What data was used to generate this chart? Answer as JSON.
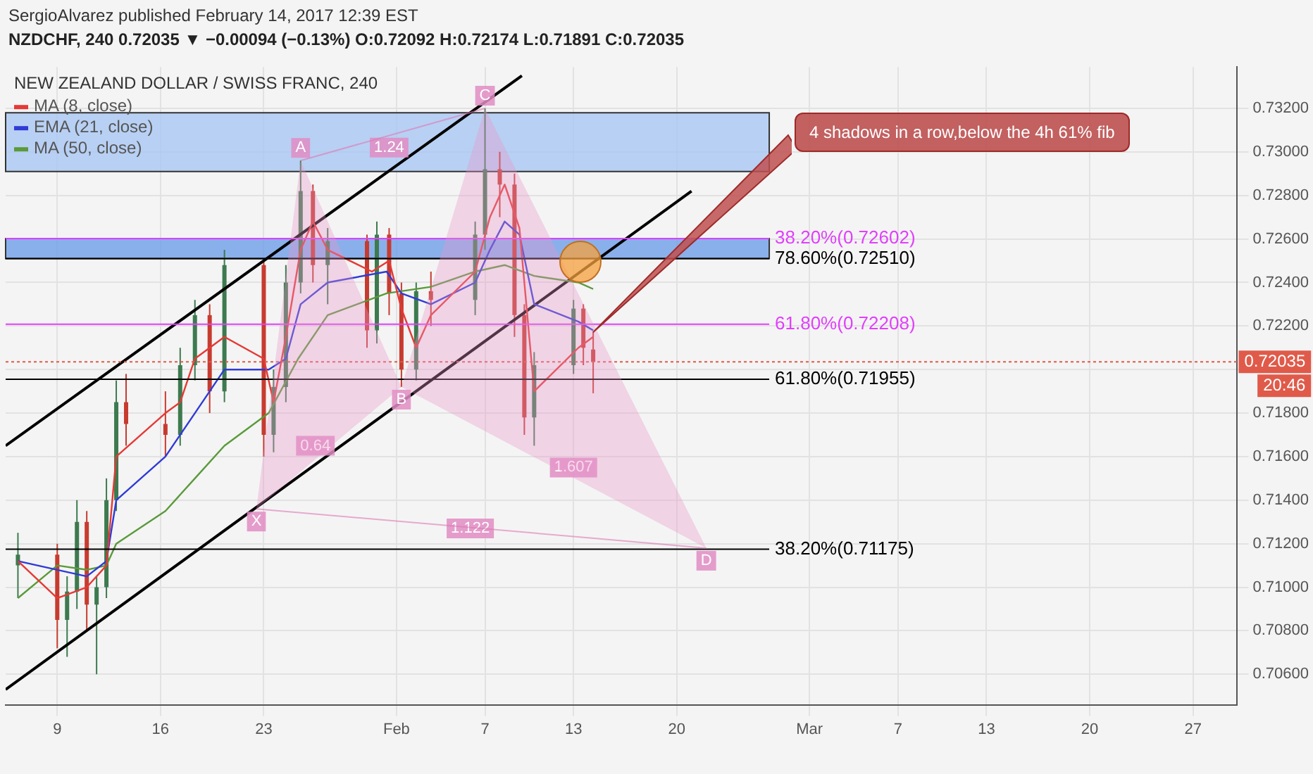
{
  "chart_data": {
    "type": "candlestick",
    "title": "NEW ZEALAND DOLLAR / SWISS FRANC, 240",
    "subtitle": "NZDCHF, 240  0.72035 ▼ −0.00094 (−0.13%) O:0.72092 H:0.72174 L:0.71891 C:0.72035",
    "x": [
      "2017-01-06T08:00",
      "2017-01-09T00:00",
      "2017-01-09T16:00",
      "2017-01-10T08:00",
      "2017-01-11T00:00",
      "2017-01-11T16:00",
      "2017-01-12T08:00",
      "2017-01-13T00:00",
      "2017-01-13T16:00",
      "2017-01-16T08:00",
      "2017-01-17T08:00",
      "2017-01-18T08:00",
      "2017-01-19T08:00",
      "2017-01-20T08:00",
      "2017-01-23T00:00",
      "2017-01-23T16:00",
      "2017-01-24T12:00",
      "2017-01-25T12:00",
      "2017-01-26T08:00",
      "2017-01-27T08:00",
      "2017-01-30T00:00",
      "2017-01-30T16:00",
      "2017-01-31T12:00",
      "2017-02-01T08:00",
      "2017-02-02T08:00",
      "2017-02-03T08:00",
      "2017-02-06T08:00",
      "2017-02-07T00:00",
      "2017-02-08T00:00",
      "2017-02-09T00:00",
      "2017-02-09T16:00",
      "2017-02-10T08:00",
      "2017-02-13T00:00",
      "2017-02-13T16:00",
      "2017-02-14T08:00"
    ],
    "ohlc": [
      [
        0.711,
        0.7125,
        0.7095,
        0.7115
      ],
      [
        0.7115,
        0.712,
        0.7072,
        0.7085
      ],
      [
        0.7085,
        0.7105,
        0.7068,
        0.7098
      ],
      [
        0.7098,
        0.714,
        0.709,
        0.713
      ],
      [
        0.713,
        0.7135,
        0.708,
        0.7092
      ],
      [
        0.7092,
        0.7105,
        0.706,
        0.71
      ],
      [
        0.71,
        0.715,
        0.7095,
        0.714
      ],
      [
        0.714,
        0.7195,
        0.7135,
        0.7185
      ],
      [
        0.7185,
        0.7198,
        0.7165,
        0.7175
      ],
      [
        0.7175,
        0.719,
        0.716,
        0.717
      ],
      [
        0.717,
        0.721,
        0.7165,
        0.7202
      ],
      [
        0.7202,
        0.7232,
        0.7195,
        0.7225
      ],
      [
        0.7225,
        0.723,
        0.718,
        0.719
      ],
      [
        0.719,
        0.7255,
        0.7185,
        0.7248
      ],
      [
        0.7248,
        0.725,
        0.716,
        0.717
      ],
      [
        0.717,
        0.72,
        0.7162,
        0.7192
      ],
      [
        0.7192,
        0.7248,
        0.7185,
        0.724
      ],
      [
        0.724,
        0.7296,
        0.7235,
        0.7282
      ],
      [
        0.7282,
        0.7285,
        0.724,
        0.7248
      ],
      [
        0.7248,
        0.7265,
        0.723,
        0.7259
      ],
      [
        0.7259,
        0.7262,
        0.721,
        0.7218
      ],
      [
        0.7218,
        0.7268,
        0.7212,
        0.7262
      ],
      [
        0.7262,
        0.7265,
        0.7225,
        0.7235
      ],
      [
        0.7235,
        0.724,
        0.7192,
        0.72
      ],
      [
        0.72,
        0.724,
        0.7195,
        0.7236
      ],
      [
        0.7236,
        0.7245,
        0.722,
        0.7232
      ],
      [
        0.7232,
        0.7268,
        0.7225,
        0.7262
      ],
      [
        0.7262,
        0.732,
        0.7255,
        0.7292
      ],
      [
        0.7292,
        0.73,
        0.727,
        0.7285
      ],
      [
        0.7285,
        0.729,
        0.7215,
        0.7225
      ],
      [
        0.7225,
        0.723,
        0.717,
        0.7178
      ],
      [
        0.7178,
        0.7208,
        0.7165,
        0.7202
      ],
      [
        0.7202,
        0.7232,
        0.7198,
        0.7228
      ],
      [
        0.7228,
        0.723,
        0.7202,
        0.721
      ],
      [
        0.72092,
        0.72174,
        0.71891,
        0.72035
      ]
    ],
    "series": [
      {
        "type": "line",
        "name": "MA (8, close)",
        "color": "#e53935",
        "x": [
          "2017-01-06T08:00",
          "2017-01-09T00:00",
          "2017-01-11T00:00",
          "2017-01-12T08:00",
          "2017-01-13T00:00",
          "2017-01-16T08:00",
          "2017-01-17T08:00",
          "2017-01-18T08:00",
          "2017-01-19T08:00",
          "2017-01-20T08:00",
          "2017-01-23T00:00",
          "2017-01-23T16:00",
          "2017-01-24T12:00",
          "2017-01-25T12:00",
          "2017-01-26T08:00",
          "2017-01-27T08:00",
          "2017-01-30T08:00",
          "2017-01-31T12:00",
          "2017-02-01T08:00",
          "2017-02-02T08:00",
          "2017-02-03T08:00",
          "2017-02-06T08:00",
          "2017-02-07T08:00",
          "2017-02-08T08:00",
          "2017-02-09T08:00",
          "2017-02-10T08:00",
          "2017-02-13T08:00",
          "2017-02-14T08:00"
        ],
        "values": [
          0.7112,
          0.7095,
          0.71,
          0.711,
          0.716,
          0.718,
          0.7185,
          0.7205,
          0.721,
          0.7215,
          0.7205,
          0.7185,
          0.7215,
          0.7255,
          0.7268,
          0.7255,
          0.7245,
          0.725,
          0.7228,
          0.721,
          0.7225,
          0.7245,
          0.727,
          0.7285,
          0.7265,
          0.719,
          0.721,
          0.7215
        ]
      },
      {
        "type": "line",
        "name": "EMA (21, close)",
        "color": "#2f3bd6",
        "x": [
          "2017-01-06T08:00",
          "2017-01-09T00:00",
          "2017-01-11T00:00",
          "2017-01-12T08:00",
          "2017-01-13T00:00",
          "2017-01-16T08:00",
          "2017-01-18T08:00",
          "2017-01-20T08:00",
          "2017-01-23T08:00",
          "2017-01-24T12:00",
          "2017-01-25T12:00",
          "2017-01-27T08:00",
          "2017-01-31T08:00",
          "2017-02-01T08:00",
          "2017-02-03T08:00",
          "2017-02-06T08:00",
          "2017-02-07T08:00",
          "2017-02-08T08:00",
          "2017-02-09T08:00",
          "2017-02-10T08:00",
          "2017-02-13T08:00",
          "2017-02-14T08:00"
        ],
        "values": [
          0.7112,
          0.7108,
          0.7105,
          0.7112,
          0.714,
          0.716,
          0.718,
          0.72,
          0.72,
          0.7205,
          0.723,
          0.724,
          0.7245,
          0.7235,
          0.723,
          0.724,
          0.7255,
          0.7268,
          0.7262,
          0.723,
          0.7222,
          0.7218
        ]
      },
      {
        "type": "line",
        "name": "MA (50, close)",
        "color": "#5a9a3a",
        "x": [
          "2017-01-06T08:00",
          "2017-01-09T00:00",
          "2017-01-11T00:00",
          "2017-01-12T08:00",
          "2017-01-13T00:00",
          "2017-01-16T08:00",
          "2017-01-18T08:00",
          "2017-01-20T08:00",
          "2017-01-23T08:00",
          "2017-01-25T08:00",
          "2017-01-27T08:00",
          "2017-01-31T08:00",
          "2017-02-03T08:00",
          "2017-02-06T08:00",
          "2017-02-08T08:00",
          "2017-02-10T08:00",
          "2017-02-13T08:00",
          "2017-02-14T08:00"
        ],
        "values": [
          0.7095,
          0.711,
          0.7108,
          0.711,
          0.712,
          0.7135,
          0.715,
          0.7165,
          0.718,
          0.7205,
          0.7225,
          0.7235,
          0.7238,
          0.7245,
          0.7248,
          0.7243,
          0.724,
          0.7237
        ]
      },
      {
        "type": "line",
        "color": "#000000",
        "x": [
          "2017-01-05T12:00",
          "2017-02-21T00:00"
        ],
        "values": [
          0.7053,
          0.7282
        ]
      },
      {
        "type": "line",
        "color": "#000000",
        "x": [
          "2017-01-05T12:00",
          "2017-02-09T12:00"
        ],
        "values": [
          0.7165,
          0.7335
        ]
      }
    ],
    "xlim": [
      "2017-01-05T12:00",
      "2017-03-30T00:00"
    ],
    "xticks": [
      {
        "value": "2017-01-09",
        "label": "9"
      },
      {
        "value": "2017-01-16",
        "label": "16"
      },
      {
        "value": "2017-01-23",
        "label": "23"
      },
      {
        "value": "2017-02-01",
        "label": "Feb"
      },
      {
        "value": "2017-02-07",
        "label": "7"
      },
      {
        "value": "2017-02-13",
        "label": "13"
      },
      {
        "value": "2017-02-20",
        "label": "20"
      },
      {
        "value": "2017-03-01",
        "label": "Mar"
      },
      {
        "value": "2017-03-07",
        "label": "7"
      },
      {
        "value": "2017-03-13",
        "label": "13"
      },
      {
        "value": "2017-03-20",
        "label": "20"
      },
      {
        "value": "2017-03-27",
        "label": "27"
      }
    ],
    "ylim": [
      0.7046,
      0.7339
    ],
    "yticks": [
      {
        "value": 0.706,
        "label": "0.70600"
      },
      {
        "value": 0.708,
        "label": "0.70800"
      },
      {
        "value": 0.71,
        "label": "0.71000"
      },
      {
        "value": 0.712,
        "label": "0.71200"
      },
      {
        "value": 0.714,
        "label": "0.71400"
      },
      {
        "value": 0.716,
        "label": "0.71600"
      },
      {
        "value": 0.718,
        "label": "0.71800"
      },
      {
        "value": 0.72,
        "label": null
      },
      {
        "value": 0.722,
        "label": "0.72200"
      },
      {
        "value": 0.724,
        "label": "0.72400"
      },
      {
        "value": 0.726,
        "label": "0.72600"
      },
      {
        "value": 0.728,
        "label": "0.72800"
      },
      {
        "value": 0.73,
        "label": "0.73000"
      },
      {
        "value": 0.732,
        "label": "0.73200"
      }
    ],
    "bands": [
      {
        "axis": "y",
        "from": 0.7291,
        "to": 0.7318,
        "color": "#a9c7f2"
      },
      {
        "axis": "y",
        "from": 0.7251,
        "to": 0.72602,
        "color": "#6f9fe8"
      }
    ],
    "ref_lines": [
      {
        "axis": "y",
        "value": 0.72602,
        "label": "38.20%(0.72602)",
        "color": "#e040fb"
      },
      {
        "axis": "y",
        "value": 0.7251,
        "label": "78.60%(0.72510)",
        "color": "#000000"
      },
      {
        "axis": "y",
        "value": 0.72208,
        "label": "61.80%(0.72208)",
        "color": "#e040fb"
      },
      {
        "axis": "y",
        "value": 0.71955,
        "label": "61.80%(0.71955)",
        "color": "#000000"
      },
      {
        "axis": "y",
        "value": 0.71175,
        "label": "38.20%(0.71175)",
        "color": "#000000"
      },
      {
        "axis": "y",
        "value": 0.72035,
        "label": "0.72035",
        "color": "#e05a4a",
        "line_style": "dotted"
      }
    ],
    "annotations": [
      {
        "text": "X",
        "x": "2017-01-22T12:00",
        "y": 0.7136
      },
      {
        "text": "A",
        "x": "2017-01-25T12:00",
        "y": 0.7296
      },
      {
        "text": "B",
        "x": "2017-02-01T08:00",
        "y": 0.7192
      },
      {
        "text": "C",
        "x": "2017-02-07T00:00",
        "y": 0.732
      },
      {
        "text": "D",
        "x": "2017-02-22T00:00",
        "y": 0.7118
      },
      {
        "text": "1.24",
        "x": "2017-01-31T12:00",
        "y": 0.7302
      },
      {
        "text": "0.64",
        "x": "2017-01-26T12:00",
        "y": 0.7165
      },
      {
        "text": "1.607",
        "x": "2017-02-13T00:00",
        "y": 0.7155
      },
      {
        "text": "1.122",
        "x": "2017-02-06T00:00",
        "y": 0.7127
      },
      "4 shadows in a row,below the 4h 61% fib",
      "20:46",
      "SergioAlvarez published February 14, 2017 12:39 EST"
    ],
    "grid": true,
    "legend": "top left",
    "marker": "none",
    "line_style": "solid"
  }
}
